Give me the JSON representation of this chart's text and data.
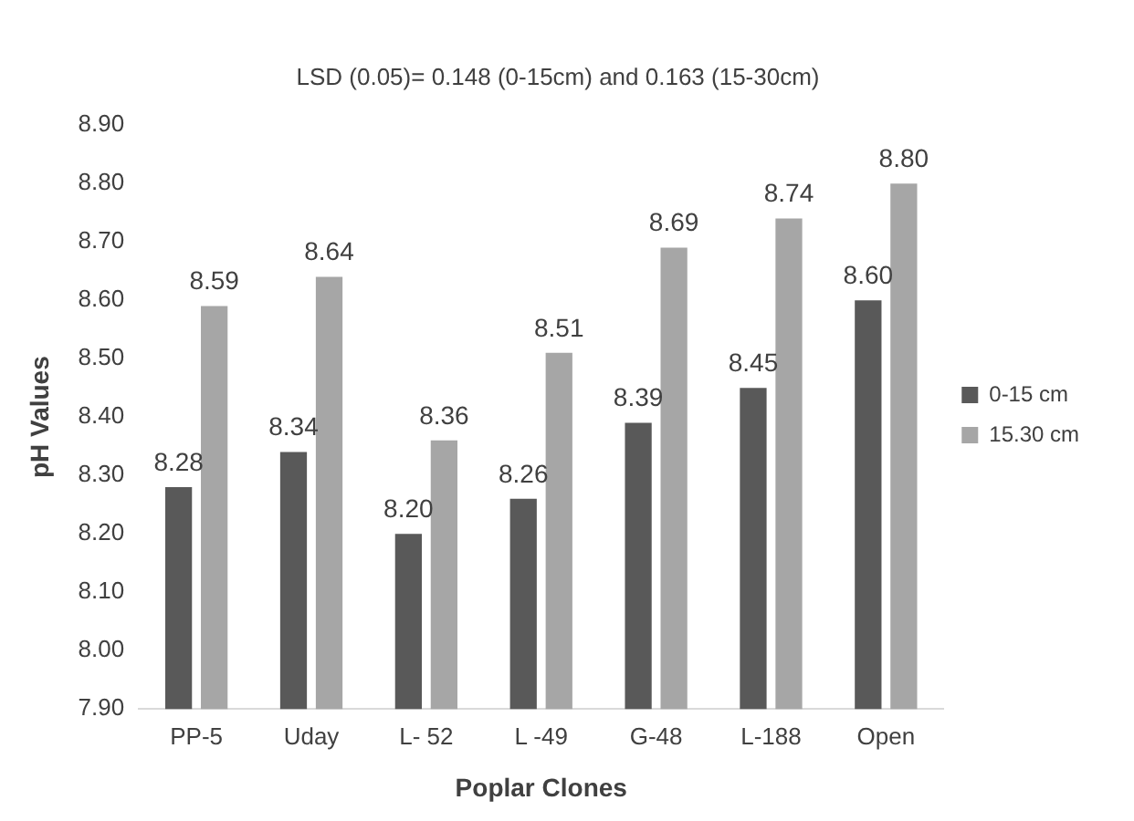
{
  "chart_data": {
    "type": "bar",
    "title": "LSD (0.05)= 0.148 (0-15cm) and 0.163 (15-30cm)",
    "xlabel": "Poplar Clones",
    "ylabel": "pH Values",
    "categories": [
      "PP-5",
      "Uday",
      "L- 52",
      "L -49",
      "G-48",
      "L-188",
      "Open"
    ],
    "series": [
      {
        "name": "0-15 cm",
        "color": "#595959",
        "values": [
          8.28,
          8.34,
          8.2,
          8.26,
          8.39,
          8.45,
          8.6
        ],
        "value_labels": [
          "8.28",
          "8.34",
          "8.20",
          "8.26",
          "8.39",
          "8.45",
          "8.60"
        ]
      },
      {
        "name": "15.30 cm",
        "color": "#a6a6a6",
        "values": [
          8.59,
          8.64,
          8.36,
          8.51,
          8.69,
          8.74,
          8.8
        ],
        "value_labels": [
          "8.59",
          "8.64",
          "8.36",
          "8.51",
          "8.69",
          "8.74",
          "8.80"
        ]
      }
    ],
    "ylim": [
      7.9,
      8.9
    ],
    "yticks": [
      {
        "value": 7.9,
        "label": "7.90"
      },
      {
        "value": 8.0,
        "label": "8.00"
      },
      {
        "value": 8.1,
        "label": "8.10"
      },
      {
        "value": 8.2,
        "label": "8.20"
      },
      {
        "value": 8.3,
        "label": "8.30"
      },
      {
        "value": 8.4,
        "label": "8.40"
      },
      {
        "value": 8.5,
        "label": "8.50"
      },
      {
        "value": 8.6,
        "label": "8.60"
      },
      {
        "value": 8.7,
        "label": "8.70"
      },
      {
        "value": 8.8,
        "label": "8.80"
      },
      {
        "value": 8.9,
        "label": "8.90"
      }
    ],
    "grid": false,
    "legend": "right"
  }
}
